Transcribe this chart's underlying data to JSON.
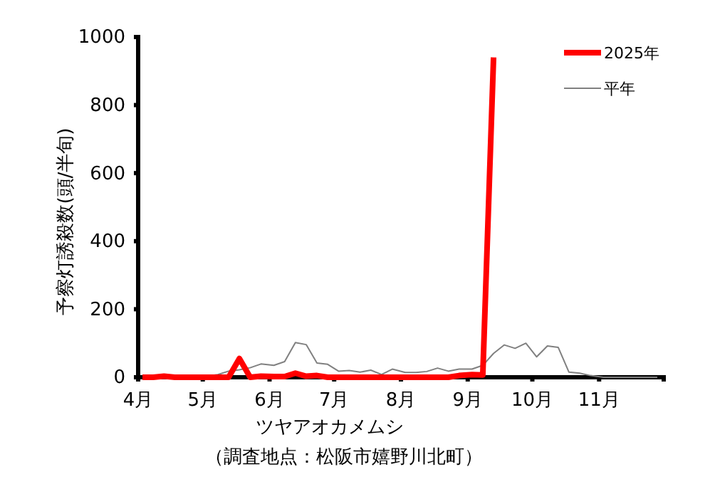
{
  "chart_data": {
    "type": "line",
    "xlabel": "ツヤアオカメムシ",
    "ylabel": "予察灯誘殺数(頭/半旬)",
    "annotations": [
      "（調査地点：松阪市嬉野川北町）"
    ],
    "x": [
      "--04-03",
      "--04-08",
      "--04-13",
      "--04-18",
      "--04-23",
      "--04-28",
      "--05-03",
      "--05-08",
      "--05-13",
      "--05-18",
      "--05-23",
      "--05-28",
      "--06-03",
      "--06-08",
      "--06-13",
      "--06-18",
      "--06-23",
      "--06-28",
      "--07-03",
      "--07-08",
      "--07-13",
      "--07-18",
      "--07-23",
      "--07-28",
      "--08-03",
      "--08-08",
      "--08-13",
      "--08-18",
      "--08-23",
      "--08-28",
      "--09-03",
      "--09-08",
      "--09-13",
      "--09-18",
      "--09-23",
      "--09-28",
      "--10-03",
      "--10-08",
      "--10-13",
      "--10-18",
      "--10-23",
      "--10-28",
      "--11-03",
      "--11-08",
      "--11-13",
      "--11-18",
      "--11-23",
      "--11-28"
    ],
    "xlim": [
      "--04-01",
      "--12-01"
    ],
    "xticks": [
      {
        "value": "--04-01",
        "label": "4月"
      },
      {
        "value": "--05-01",
        "label": "5月"
      },
      {
        "value": "--06-01",
        "label": "6月"
      },
      {
        "value": "--07-01",
        "label": "7月"
      },
      {
        "value": "--08-01",
        "label": "8月"
      },
      {
        "value": "--09-01",
        "label": "9月"
      },
      {
        "value": "--10-01",
        "label": "10月"
      },
      {
        "value": "--11-01",
        "label": "11月"
      },
      {
        "value": "--12-01",
        "label": null
      }
    ],
    "ylim": [
      0,
      1000
    ],
    "yticks": [
      0,
      200,
      400,
      600,
      800,
      1000
    ],
    "series": [
      {
        "name": "2025年",
        "color": "#ff0000",
        "values": [
          0,
          0,
          3,
          0,
          0,
          0,
          0,
          0,
          0,
          55,
          0,
          3,
          2,
          2,
          12,
          3,
          5,
          0,
          0,
          0,
          0,
          0,
          0,
          0,
          0,
          0,
          0,
          0,
          0,
          5,
          8,
          7,
          940,
          null,
          null,
          null,
          null,
          null,
          null,
          null,
          null,
          null,
          null,
          null,
          null,
          null,
          null,
          null
        ]
      },
      {
        "name": "平年",
        "color": "#808080",
        "values": [
          0,
          0,
          0,
          0,
          1,
          2,
          3,
          8,
          18,
          22,
          28,
          39,
          35,
          46,
          102,
          96,
          42,
          38,
          18,
          20,
          15,
          21,
          8,
          24,
          14,
          14,
          17,
          27,
          18,
          24,
          24,
          35,
          70,
          95,
          85,
          100,
          60,
          92,
          88,
          15,
          12,
          5,
          0,
          0,
          0,
          0,
          0,
          0
        ]
      }
    ],
    "legend": "top right",
    "grid": false
  }
}
